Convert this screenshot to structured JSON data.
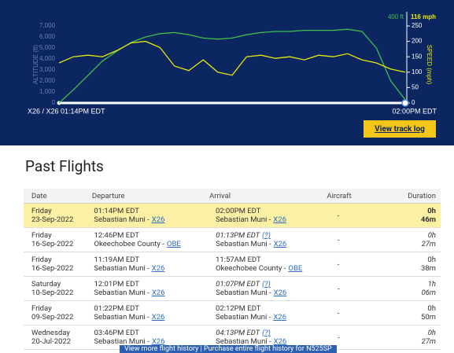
{
  "track": {
    "chart_data": {
      "type": "line",
      "y_title": "ALTITUDE (ft)",
      "y2_title": "SPEED (mph)",
      "current_altitude": "400 ft",
      "current_speed": "116 mph",
      "start_label": "X26 / X26 01:14PM EDT",
      "end_label": "02:00PM EDT",
      "ylim": [
        0,
        7000
      ],
      "yticks": [
        0,
        {
          "value": 1000,
          "label": "1,000"
        },
        {
          "value": 2000,
          "label": "2,000"
        },
        {
          "value": 3000,
          "label": "3,000"
        },
        {
          "value": 4000,
          "label": "4,000"
        },
        {
          "value": 5000,
          "label": "5,000"
        },
        {
          "value": 6000,
          "label": "6,000"
        },
        {
          "value": 7000,
          "label": "7,000"
        }
      ],
      "y2lim": [
        0,
        250
      ],
      "y2ticks": [
        0,
        50,
        100,
        150,
        200,
        250
      ],
      "series": [
        {
          "name": "ALTITUDE (ft)",
          "color": "#3fbf4a",
          "values": [
            0,
            1200,
            2500,
            3800,
            4700,
            5500,
            6000,
            6300,
            6400,
            6200,
            5900,
            5800,
            5900,
            6200,
            6400,
            6500,
            6500,
            6600,
            6600,
            6600,
            6700,
            6500,
            5000,
            2000,
            300
          ]
        },
        {
          "name": "SPEED (mph)",
          "color": "#e8e80a",
          "axis": "y2",
          "values": [
            130,
            150,
            155,
            150,
            170,
            195,
            200,
            180,
            120,
            105,
            140,
            100,
            90,
            150,
            155,
            145,
            150,
            140,
            155,
            150,
            160,
            140,
            130,
            110,
            100
          ]
        }
      ]
    },
    "button": "View track log"
  },
  "past_flights": {
    "title": "Past Flights",
    "columns": [
      "Date",
      "Departure",
      "Arrival",
      "Aircraft",
      "Duration"
    ],
    "rows": [
      {
        "day": "Friday",
        "date": "23-Sep-2022",
        "dep_time": "01:14PM EDT",
        "dep_airport": "Sebastian Muni -",
        "dep_code": "X26",
        "arr_time": "02:00PM EDT",
        "arr_note": null,
        "arr_airport": "Sebastian Muni -",
        "arr_code": "X26",
        "aircraft": "-",
        "duration": "0h 46m",
        "estimated": false,
        "highlight": true
      },
      {
        "day": "Friday",
        "date": "16-Sep-2022",
        "dep_time": "12:46PM EDT",
        "dep_airport": "Okeechobee County -",
        "dep_code": "OBE",
        "arr_time": "01:13PM EDT",
        "arr_note": "(?)",
        "arr_airport": "Sebastian Muni -",
        "arr_code": "X26",
        "aircraft": "-",
        "duration": "0h 27m",
        "estimated": true,
        "highlight": false
      },
      {
        "day": "Friday",
        "date": "16-Sep-2022",
        "dep_time": "11:19AM EDT",
        "dep_airport": "Sebastian Muni -",
        "dep_code": "X26",
        "arr_time": "11:57AM EDT",
        "arr_note": null,
        "arr_airport": "Okeechobee County -",
        "arr_code": "OBE",
        "aircraft": "-",
        "duration": "0h 38m",
        "estimated": false,
        "highlight": false
      },
      {
        "day": "Saturday",
        "date": "10-Sep-2022",
        "dep_time": "12:01PM EDT",
        "dep_airport": "Sebastian Muni -",
        "dep_code": "X26",
        "arr_time": "01:07PM EDT",
        "arr_note": "(?)",
        "arr_airport": "Sebastian Muni -",
        "arr_code": "X26",
        "aircraft": "-",
        "duration": "1h 06m",
        "estimated": true,
        "highlight": false
      },
      {
        "day": "Friday",
        "date": "09-Sep-2022",
        "dep_time": "01:22PM EDT",
        "dep_airport": "Sebastian Muni -",
        "dep_code": "X26",
        "arr_time": "02:12PM EDT",
        "arr_note": null,
        "arr_airport": "Sebastian Muni -",
        "arr_code": "X26",
        "aircraft": "-",
        "duration": "0h 50m",
        "estimated": false,
        "highlight": false
      },
      {
        "day": "Wednesday",
        "date": "20-Jul-2022",
        "dep_time": "03:46PM EDT",
        "dep_airport": "Sebastian Muni -",
        "dep_code": "X26",
        "arr_time": "04:13PM EDT",
        "arr_note": "(?)",
        "arr_airport": "Sebastian Muni -",
        "arr_code": "X26",
        "aircraft": "-",
        "duration": "0h 27m",
        "estimated": true,
        "highlight": false
      }
    ],
    "footer": "View more flight history | Purchase entire flight history for N525SP"
  }
}
